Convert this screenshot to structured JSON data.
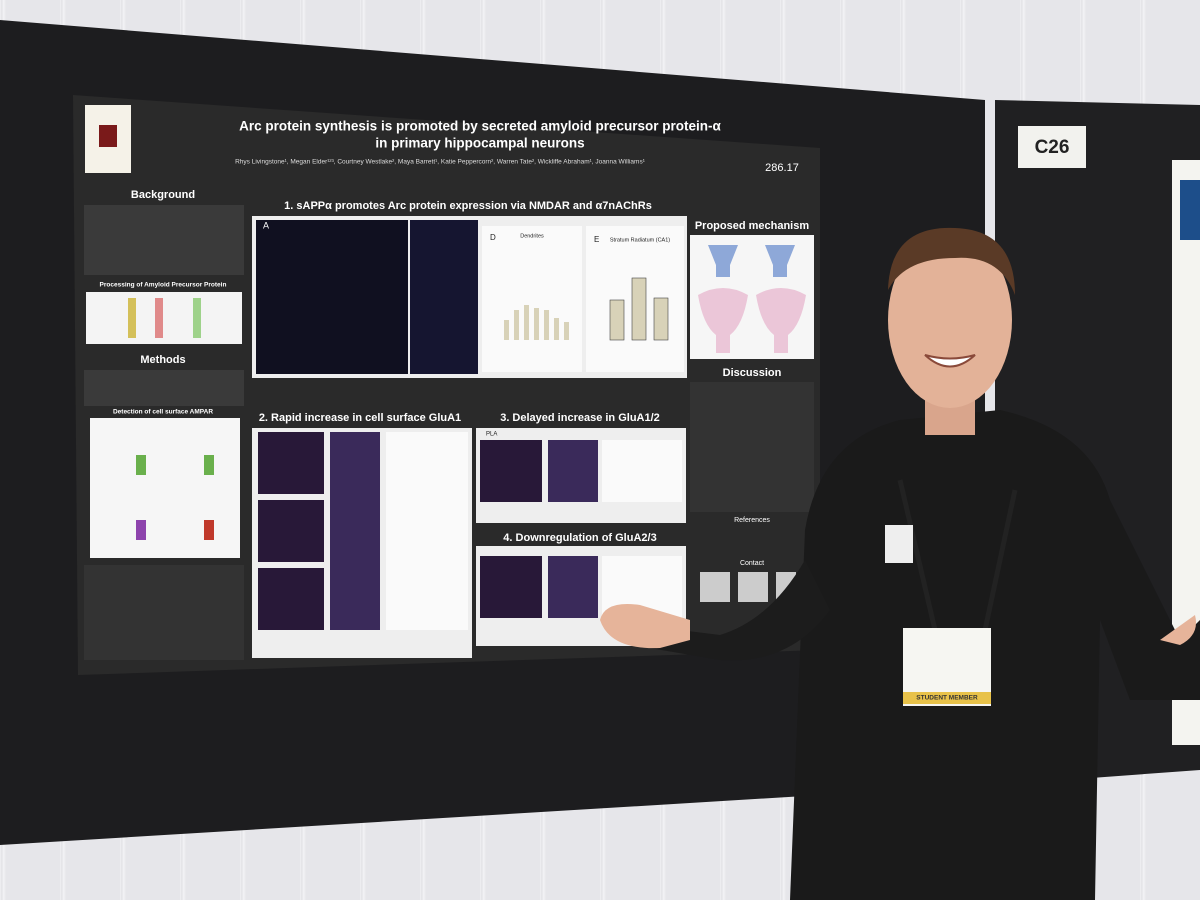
{
  "board_label": "C26",
  "poster": {
    "number": "286.17",
    "title": [
      "Arc protein synthesis is promoted by secreted amyloid precursor protein-α",
      "in primary hippocampal neurons"
    ],
    "authors": "Rhys Livingstone¹, Megan Elder¹²³, Courtney Westlake², Maya Barrett¹, Katie Peppercorn², Warren Tate², Wickliffe Abraham¹, Joanna Williams¹",
    "sections": {
      "background": "Background",
      "processing": "Processing of Amyloid Precursor Protein",
      "methods": "Methods",
      "detection": "Detection of cell surface AMPAR",
      "result1": "1. sAPPα promotes Arc protein expression via NMDAR and α7nAChRs",
      "mechanism": "Proposed mechanism",
      "discussion": "Discussion",
      "result2": "2. Rapid increase in cell surface GluA1",
      "result3": "3. Delayed increase in GluA1/2",
      "result4": "4. Downregulation of GluA2/3",
      "references": "References",
      "contact": "Contact"
    },
    "panels": {
      "a": "A",
      "d": "D",
      "e": "E",
      "dendrites": "Dendrites",
      "stratum": "Stratum Radiatum (CA1)",
      "pla": "PLA"
    }
  },
  "badge": {
    "status": "STUDENT MEMBER"
  }
}
